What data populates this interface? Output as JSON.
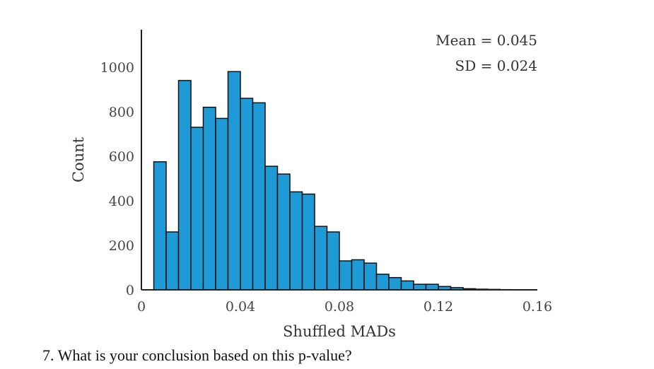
{
  "chart_data": {
    "type": "bar",
    "subtype": "histogram",
    "xlabel": "Shuffled MADs",
    "ylabel": "Count",
    "xlim": [
      0,
      0.16
    ],
    "ylim": [
      0,
      1000
    ],
    "xticks": [
      "0",
      "0.04",
      "0.08",
      "0.12",
      "0.16"
    ],
    "yticks": [
      "0",
      "200",
      "400",
      "600",
      "800",
      "1000"
    ],
    "bin_width": 0.005,
    "bins": [
      {
        "x0": 0.005,
        "x1": 0.01,
        "value": 575
      },
      {
        "x0": 0.01,
        "x1": 0.015,
        "value": 260
      },
      {
        "x0": 0.015,
        "x1": 0.02,
        "value": 940
      },
      {
        "x0": 0.02,
        "x1": 0.025,
        "value": 730
      },
      {
        "x0": 0.025,
        "x1": 0.03,
        "value": 820
      },
      {
        "x0": 0.03,
        "x1": 0.035,
        "value": 770
      },
      {
        "x0": 0.035,
        "x1": 0.04,
        "value": 980
      },
      {
        "x0": 0.04,
        "x1": 0.045,
        "value": 860
      },
      {
        "x0": 0.045,
        "x1": 0.05,
        "value": 840
      },
      {
        "x0": 0.05,
        "x1": 0.055,
        "value": 555
      },
      {
        "x0": 0.055,
        "x1": 0.06,
        "value": 520
      },
      {
        "x0": 0.06,
        "x1": 0.065,
        "value": 440
      },
      {
        "x0": 0.065,
        "x1": 0.07,
        "value": 430
      },
      {
        "x0": 0.07,
        "x1": 0.075,
        "value": 285
      },
      {
        "x0": 0.075,
        "x1": 0.08,
        "value": 260
      },
      {
        "x0": 0.08,
        "x1": 0.085,
        "value": 130
      },
      {
        "x0": 0.085,
        "x1": 0.09,
        "value": 135
      },
      {
        "x0": 0.09,
        "x1": 0.095,
        "value": 120
      },
      {
        "x0": 0.095,
        "x1": 0.1,
        "value": 70
      },
      {
        "x0": 0.1,
        "x1": 0.105,
        "value": 55
      },
      {
        "x0": 0.105,
        "x1": 0.11,
        "value": 40
      },
      {
        "x0": 0.11,
        "x1": 0.115,
        "value": 25
      },
      {
        "x0": 0.115,
        "x1": 0.12,
        "value": 25
      },
      {
        "x0": 0.12,
        "x1": 0.125,
        "value": 15
      },
      {
        "x0": 0.125,
        "x1": 0.13,
        "value": 10
      },
      {
        "x0": 0.13,
        "x1": 0.135,
        "value": 5
      },
      {
        "x0": 0.135,
        "x1": 0.14,
        "value": 3
      },
      {
        "x0": 0.14,
        "x1": 0.145,
        "value": 2
      },
      {
        "x0": 0.145,
        "x1": 0.15,
        "value": 1
      }
    ],
    "annotations": {
      "mean": "Mean = 0.045",
      "sd": "SD = 0.024"
    },
    "bar_color": "#1e9ad6",
    "bar_edge_color": "#111111",
    "grid": false,
    "legend": "none"
  },
  "question": "7.  What is your conclusion based on this p-value?"
}
